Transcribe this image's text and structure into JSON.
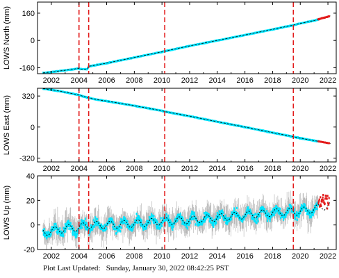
{
  "footer": {
    "label": "Plot Last Updated:",
    "value": "Sunday, January 30, 2022 08:42:25 PST"
  },
  "colors": {
    "data": "#00e5ff",
    "error_bar": "#b0b0b0",
    "model": "#000000",
    "event_line": "#e21b1b",
    "recent": "#e21b1b"
  },
  "chart_data": [
    {
      "type": "scatter",
      "ylabel": "LOWS North (mm)",
      "xlim": [
        2001.0,
        2022.6
      ],
      "ylim": [
        -195,
        225
      ],
      "yticks": [
        -160,
        0,
        160
      ],
      "xticks": [
        2002,
        2004,
        2006,
        2008,
        2010,
        2012,
        2014,
        2016,
        2018,
        2020,
        2022
      ],
      "event_lines": [
        2004.0,
        2004.7,
        2010.2,
        2019.5
      ],
      "series": [
        {
          "values": [
            [
              2001.5,
              -190
            ],
            [
              2002.5,
              -180
            ],
            [
              2003.5,
              -170
            ],
            [
              2004.0,
              -163
            ],
            [
              2004.05,
              -168
            ],
            [
              2004.6,
              -168
            ],
            [
              2004.7,
              -152
            ],
            [
              2006.0,
              -133
            ],
            [
              2008.0,
              -100
            ],
            [
              2010.0,
              -67
            ],
            [
              2010.2,
              -63
            ],
            [
              2012.0,
              -32
            ],
            [
              2014.0,
              0
            ],
            [
              2016.0,
              32
            ],
            [
              2018.0,
              65
            ],
            [
              2019.5,
              90
            ],
            [
              2020.0,
              100
            ],
            [
              2021.0,
              117
            ],
            [
              2022.0,
              140
            ],
            [
              2022.3,
              147
            ]
          ]
        }
      ]
    },
    {
      "type": "scatter",
      "ylabel": "LOWS East (mm)",
      "xlim": [
        2001.0,
        2022.6
      ],
      "ylim": [
        -360,
        400
      ],
      "yticks": [
        -320,
        0,
        320
      ],
      "xticks": [
        2002,
        2004,
        2006,
        2008,
        2010,
        2012,
        2014,
        2016,
        2018,
        2020,
        2022
      ],
      "event_lines": [
        2004.0,
        2004.7,
        2010.2,
        2019.5
      ],
      "series": [
        {
          "values": [
            [
              2001.5,
              395
            ],
            [
              2002.5,
              373
            ],
            [
              2003.5,
              345
            ],
            [
              2004.0,
              330
            ],
            [
              2004.7,
              300
            ],
            [
              2005.5,
              278
            ],
            [
              2006.0,
              268
            ],
            [
              2008.0,
              220
            ],
            [
              2010.0,
              168
            ],
            [
              2010.2,
              160
            ],
            [
              2012.0,
              112
            ],
            [
              2014.0,
              55
            ],
            [
              2016.0,
              0
            ],
            [
              2018.0,
              -58
            ],
            [
              2019.5,
              -100
            ],
            [
              2020.0,
              -115
            ],
            [
              2021.0,
              -140
            ],
            [
              2022.0,
              -165
            ],
            [
              2022.3,
              -175
            ]
          ]
        }
      ]
    },
    {
      "type": "scatter",
      "ylabel": "LOWS Up (mm)",
      "xlim": [
        2001.0,
        2022.6
      ],
      "ylim": [
        -20,
        40
      ],
      "yticks": [
        -20,
        0,
        20,
        40
      ],
      "xticks": [
        2002,
        2004,
        2006,
        2008,
        2010,
        2012,
        2014,
        2016,
        2018,
        2020,
        2022
      ],
      "event_lines": [
        2004.0,
        2004.7,
        2010.2,
        2019.5
      ],
      "series": [
        {
          "values": [
            [
              2001.5,
              -6
            ],
            [
              2003.0,
              -3
            ],
            [
              2004.0,
              -2
            ],
            [
              2004.7,
              0
            ],
            [
              2006.0,
              0
            ],
            [
              2008.0,
              1
            ],
            [
              2010.0,
              3
            ],
            [
              2012.0,
              4
            ],
            [
              2014.0,
              6
            ],
            [
              2016.0,
              8
            ],
            [
              2018.0,
              10
            ],
            [
              2019.5,
              11
            ],
            [
              2020.0,
              11
            ],
            [
              2021.0,
              13
            ],
            [
              2022.0,
              16
            ]
          ]
        }
      ]
    }
  ]
}
